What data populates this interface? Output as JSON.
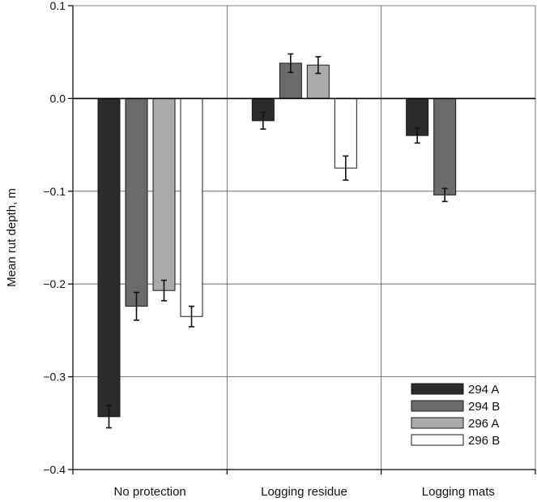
{
  "chart_data": {
    "type": "bar",
    "title": "",
    "xlabel": "",
    "ylabel": "Mean rut depth, m",
    "ylim": [
      -0.4,
      0.1
    ],
    "yticks": [
      0.1,
      0.0,
      -0.1,
      -0.2,
      -0.3,
      -0.4
    ],
    "ytick_labels": [
      "0.1",
      "0.0",
      "−0.1",
      "−0.2",
      "−0.3",
      "−0.4"
    ],
    "grid": true,
    "legend_position": "bottom-right",
    "categories": [
      "No protection",
      "Logging residue",
      "Logging mats"
    ],
    "series": [
      {
        "name": "294 A",
        "color": "#2b2b2b",
        "values": [
          -0.343,
          -0.024,
          -0.04
        ],
        "errors": [
          0.012,
          0.009,
          0.008
        ]
      },
      {
        "name": "294 B",
        "color": "#6b6b6b",
        "values": [
          -0.224,
          0.038,
          -0.104
        ],
        "errors": [
          0.015,
          0.01,
          0.007
        ]
      },
      {
        "name": "296 A",
        "color": "#ababab",
        "values": [
          -0.207,
          0.036,
          null
        ],
        "errors": [
          0.011,
          0.009,
          null
        ]
      },
      {
        "name": "296 B",
        "color": "#ffffff",
        "values": [
          -0.235,
          -0.075,
          null
        ],
        "errors": [
          0.011,
          0.013,
          null
        ]
      }
    ]
  }
}
